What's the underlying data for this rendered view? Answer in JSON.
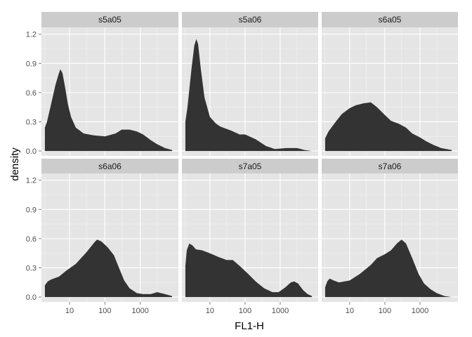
{
  "chart_data": {
    "type": "area",
    "xlabel": "FL1-H",
    "ylabel": "density",
    "x_scale": "log10",
    "x_ticks": [
      10,
      100,
      1000
    ],
    "x_tick_labels": [
      "10",
      "100",
      "1000"
    ],
    "y_ticks": [
      0.0,
      0.3,
      0.6,
      0.9,
      1.2
    ],
    "y_tick_labels": [
      "0.0",
      "0.3",
      "0.6",
      "0.9",
      "1.2"
    ],
    "xlim": [
      1.6,
      12000
    ],
    "ylim": [
      -0.05,
      1.27
    ],
    "grid": true,
    "fill_color": "#333333",
    "panel_bg": "#e5e5e5",
    "strip_bg": "#cccccc",
    "panels": [
      {
        "name": "s5a05",
        "points": [
          [
            2,
            0.24
          ],
          [
            2.3,
            0.3
          ],
          [
            3,
            0.48
          ],
          [
            4,
            0.68
          ],
          [
            5,
            0.8
          ],
          [
            5.5,
            0.84
          ],
          [
            6.3,
            0.8
          ],
          [
            7.5,
            0.65
          ],
          [
            9,
            0.48
          ],
          [
            11,
            0.35
          ],
          [
            15,
            0.24
          ],
          [
            25,
            0.18
          ],
          [
            50,
            0.16
          ],
          [
            100,
            0.15
          ],
          [
            200,
            0.18
          ],
          [
            300,
            0.22
          ],
          [
            500,
            0.22
          ],
          [
            800,
            0.2
          ],
          [
            1200,
            0.17
          ],
          [
            2000,
            0.11
          ],
          [
            3000,
            0.07
          ],
          [
            5000,
            0.03
          ],
          [
            8000,
            0.01
          ]
        ]
      },
      {
        "name": "s5a06",
        "points": [
          [
            2,
            0.3
          ],
          [
            2.3,
            0.45
          ],
          [
            3,
            0.85
          ],
          [
            3.6,
            1.08
          ],
          [
            4.1,
            1.15
          ],
          [
            4.6,
            1.1
          ],
          [
            5.5,
            0.85
          ],
          [
            7,
            0.55
          ],
          [
            10,
            0.35
          ],
          [
            15,
            0.28
          ],
          [
            20,
            0.25
          ],
          [
            40,
            0.21
          ],
          [
            70,
            0.17
          ],
          [
            100,
            0.17
          ],
          [
            200,
            0.12
          ],
          [
            400,
            0.05
          ],
          [
            700,
            0.02
          ],
          [
            1500,
            0.03
          ],
          [
            3000,
            0.03
          ],
          [
            5000,
            0.01
          ],
          [
            8000,
            0.0
          ]
        ]
      },
      {
        "name": "s6a05",
        "points": [
          [
            2,
            0.13
          ],
          [
            2.5,
            0.2
          ],
          [
            4,
            0.3
          ],
          [
            6,
            0.38
          ],
          [
            10,
            0.44
          ],
          [
            15,
            0.47
          ],
          [
            25,
            0.49
          ],
          [
            40,
            0.5
          ],
          [
            60,
            0.45
          ],
          [
            100,
            0.37
          ],
          [
            150,
            0.31
          ],
          [
            250,
            0.28
          ],
          [
            400,
            0.24
          ],
          [
            600,
            0.18
          ],
          [
            1000,
            0.14
          ],
          [
            1500,
            0.1
          ],
          [
            2500,
            0.06
          ],
          [
            4000,
            0.03
          ],
          [
            8000,
            0.01
          ]
        ]
      },
      {
        "name": "s6a06",
        "points": [
          [
            2,
            0.12
          ],
          [
            2.4,
            0.16
          ],
          [
            3,
            0.18
          ],
          [
            5,
            0.21
          ],
          [
            8,
            0.27
          ],
          [
            15,
            0.34
          ],
          [
            30,
            0.46
          ],
          [
            50,
            0.56
          ],
          [
            60,
            0.59
          ],
          [
            80,
            0.57
          ],
          [
            120,
            0.51
          ],
          [
            180,
            0.43
          ],
          [
            250,
            0.3
          ],
          [
            350,
            0.17
          ],
          [
            500,
            0.09
          ],
          [
            800,
            0.04
          ],
          [
            1200,
            0.03
          ],
          [
            2000,
            0.03
          ],
          [
            3000,
            0.05
          ],
          [
            5000,
            0.03
          ],
          [
            8000,
            0.01
          ]
        ]
      },
      {
        "name": "s7a05",
        "points": [
          [
            2,
            0.32
          ],
          [
            2.2,
            0.48
          ],
          [
            2.6,
            0.55
          ],
          [
            3.2,
            0.53
          ],
          [
            4,
            0.49
          ],
          [
            6,
            0.48
          ],
          [
            10,
            0.45
          ],
          [
            18,
            0.41
          ],
          [
            30,
            0.38
          ],
          [
            45,
            0.38
          ],
          [
            70,
            0.32
          ],
          [
            120,
            0.24
          ],
          [
            200,
            0.16
          ],
          [
            350,
            0.09
          ],
          [
            600,
            0.05
          ],
          [
            900,
            0.05
          ],
          [
            1400,
            0.1
          ],
          [
            2000,
            0.15
          ],
          [
            2500,
            0.16
          ],
          [
            3200,
            0.14
          ],
          [
            4500,
            0.07
          ],
          [
            6000,
            0.03
          ],
          [
            8000,
            0.01
          ]
        ]
      },
      {
        "name": "s7a06",
        "points": [
          [
            2,
            0.1
          ],
          [
            2.3,
            0.16
          ],
          [
            2.7,
            0.19
          ],
          [
            3.5,
            0.17
          ],
          [
            5,
            0.15
          ],
          [
            10,
            0.17
          ],
          [
            20,
            0.24
          ],
          [
            40,
            0.33
          ],
          [
            60,
            0.4
          ],
          [
            100,
            0.44
          ],
          [
            150,
            0.48
          ],
          [
            220,
            0.55
          ],
          [
            300,
            0.59
          ],
          [
            400,
            0.55
          ],
          [
            600,
            0.4
          ],
          [
            900,
            0.24
          ],
          [
            1300,
            0.14
          ],
          [
            2000,
            0.08
          ],
          [
            3000,
            0.04
          ],
          [
            5000,
            0.01
          ],
          [
            8000,
            0.0
          ]
        ]
      }
    ]
  }
}
